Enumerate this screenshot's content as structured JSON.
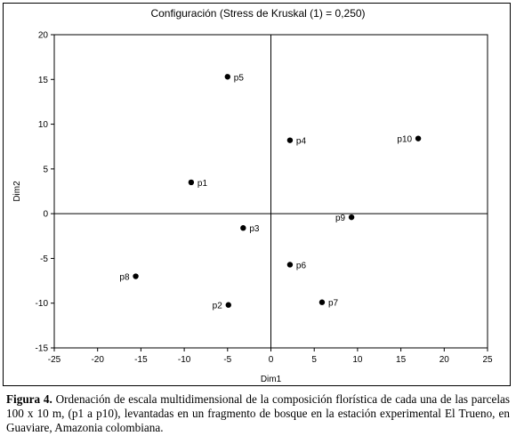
{
  "chart_data": {
    "type": "scatter",
    "title": "Configuración (Stress de Kruskal (1) = 0,250)",
    "xlabel": "Dim1",
    "ylabel": "Dim2",
    "xlim": [
      -25,
      25
    ],
    "ylim": [
      -15,
      20
    ],
    "xticks": [
      -25,
      -20,
      -15,
      -10,
      -5,
      0,
      5,
      10,
      15,
      20,
      25
    ],
    "yticks": [
      -15,
      -10,
      -5,
      0,
      5,
      10,
      15,
      20
    ],
    "points": [
      {
        "label": "p1",
        "x": -9.2,
        "y": 3.5,
        "label_side": "right"
      },
      {
        "label": "p2",
        "x": -4.9,
        "y": -10.2,
        "label_side": "left"
      },
      {
        "label": "p3",
        "x": -3.2,
        "y": -1.6,
        "label_side": "right"
      },
      {
        "label": "p4",
        "x": 2.2,
        "y": 8.2,
        "label_side": "right"
      },
      {
        "label": "p5",
        "x": -5.0,
        "y": 15.3,
        "label_side": "right"
      },
      {
        "label": "p6",
        "x": 2.2,
        "y": -5.7,
        "label_side": "right"
      },
      {
        "label": "p7",
        "x": 5.9,
        "y": -9.9,
        "label_side": "right"
      },
      {
        "label": "p8",
        "x": -15.6,
        "y": -7.0,
        "label_side": "left"
      },
      {
        "label": "p9",
        "x": 9.3,
        "y": -0.4,
        "label_side": "left"
      },
      {
        "label": "p10",
        "x": 17.0,
        "y": 8.4,
        "label_side": "left"
      }
    ],
    "grid": false,
    "zero_lines": true
  },
  "caption": {
    "label": "Figura 4.",
    "text": "Ordenación de escala multidimensional de la composición florística de cada una de las parcelas 100 x 10 m, (p1 a p10), levantadas en un fragmento de bosque en la estación experimental El Trueno, en Guaviare, Amazonia colombiana."
  }
}
